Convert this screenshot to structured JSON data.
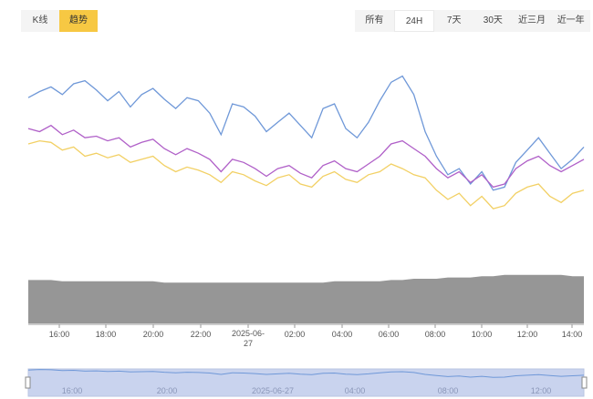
{
  "view_tabs": [
    {
      "label": "K线",
      "active": false
    },
    {
      "label": "趋势",
      "active": true
    }
  ],
  "range_tabs": [
    {
      "label": "所有",
      "active": false
    },
    {
      "label": "24H",
      "active": true
    },
    {
      "label": "7天",
      "active": false
    },
    {
      "label": "30天",
      "active": false
    },
    {
      "label": "近三月",
      "active": false
    },
    {
      "label": "近一年",
      "active": false
    }
  ],
  "colors": {
    "accent": "#f7c843",
    "line_blue": "#6f98d8",
    "line_purple": "#b060c8",
    "line_yellow": "#f2d064",
    "volume": "#969696",
    "slider_fill": "#c9d3ee",
    "slider_line": "#6f98d8"
  },
  "chart_data": {
    "type": "line",
    "x_labels": [
      "16:00",
      "18:00",
      "20:00",
      "22:00",
      "2025-06-27",
      "02:00",
      "04:00",
      "06:00",
      "08:00",
      "10:00",
      "12:00",
      "14:00"
    ],
    "slider_labels": [
      "16:00",
      "20:00",
      "2025-06-27",
      "04:00",
      "08:00",
      "12:00"
    ],
    "series": [
      {
        "color": "line_blue",
        "values": [
          108,
          112,
          115,
          110,
          117,
          119,
          113,
          106,
          112,
          102,
          110,
          114,
          107,
          101,
          108,
          106,
          98,
          84,
          104,
          102,
          96,
          86,
          92,
          98,
          90,
          82,
          101,
          104,
          88,
          82,
          92,
          106,
          118,
          122,
          110,
          86,
          70,
          58,
          62,
          52,
          60,
          48,
          50,
          66,
          74,
          82,
          72,
          62,
          68,
          76
        ]
      },
      {
        "color": "line_purple",
        "values": [
          88,
          86,
          90,
          84,
          87,
          82,
          83,
          80,
          82,
          76,
          79,
          81,
          75,
          71,
          75,
          72,
          68,
          60,
          68,
          66,
          62,
          57,
          62,
          64,
          59,
          56,
          64,
          67,
          62,
          60,
          65,
          70,
          78,
          80,
          75,
          70,
          62,
          56,
          60,
          53,
          58,
          50,
          52,
          62,
          67,
          70,
          64,
          60,
          64,
          68
        ]
      },
      {
        "color": "line_yellow",
        "values": [
          78,
          80,
          79,
          74,
          76,
          70,
          72,
          69,
          71,
          66,
          68,
          70,
          64,
          60,
          63,
          61,
          58,
          53,
          60,
          58,
          54,
          51,
          56,
          58,
          52,
          50,
          57,
          60,
          55,
          53,
          58,
          60,
          65,
          62,
          58,
          56,
          48,
          42,
          46,
          38,
          44,
          36,
          38,
          46,
          50,
          52,
          44,
          40,
          46,
          48
        ]
      }
    ],
    "volume": [
      34,
      34,
      34,
      33,
      33,
      33,
      33,
      33,
      33,
      33,
      33,
      33,
      32,
      32,
      32,
      32,
      32,
      32,
      32,
      32,
      32,
      32,
      32,
      32,
      32,
      32,
      32,
      33,
      33,
      33,
      33,
      33,
      34,
      34,
      35,
      35,
      35,
      36,
      36,
      36,
      37,
      37,
      38,
      38,
      38,
      38,
      38,
      38,
      37,
      37
    ],
    "overview": [
      96,
      98,
      97,
      94,
      95,
      92,
      93,
      91,
      92,
      89,
      90,
      91,
      88,
      86,
      88,
      87,
      85,
      80,
      86,
      85,
      83,
      80,
      82,
      84,
      81,
      79,
      84,
      85,
      81,
      79,
      82,
      86,
      89,
      90,
      87,
      80,
      76,
      72,
      74,
      70,
      73,
      69,
      70,
      75,
      77,
      79,
      76,
      73,
      75,
      77
    ]
  }
}
